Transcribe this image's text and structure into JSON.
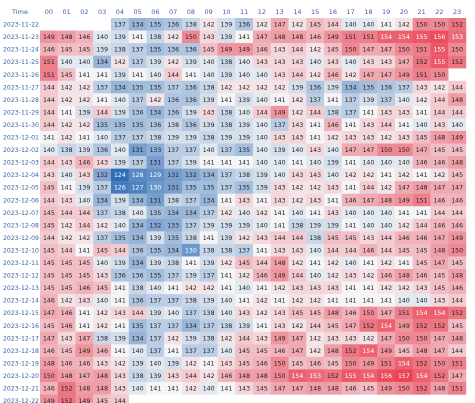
{
  "chart_data": {
    "type": "heatmap",
    "title": "",
    "corner_label": "Time",
    "color_scale": {
      "low": "#2f6db5",
      "mid": "#f5f5f7",
      "high": "#e8283c",
      "min": 124,
      "center": 141,
      "max": 160
    },
    "columns": [
      "00",
      "01",
      "02",
      "03",
      "04",
      "05",
      "06",
      "07",
      "08",
      "09",
      "10",
      "11",
      "12",
      "13",
      "14",
      "15",
      "16",
      "17",
      "18",
      "19",
      "20",
      "21",
      "22",
      "23"
    ],
    "rows": [
      "2023-11-22",
      "2023-11-23",
      "2023-11-24",
      "2023-11-25",
      "2023-11-26",
      "2023-11-27",
      "2023-11-28",
      "2023-11-29",
      "2023-11-30",
      "2023-12-01",
      "2023-12-02",
      "2023-12-03",
      "2023-12-04",
      "2023-12-05",
      "2023-12-06",
      "2023-12-07",
      "2023-12-08",
      "2023-12-09",
      "2023-12-10",
      "2023-12-11",
      "2023-12-12",
      "2023-12-13",
      "2023-12-14",
      "2023-12-15",
      "2023-12-16",
      "2023-12-17",
      "2023-12-18",
      "2023-12-19",
      "2023-12-20",
      "2023-12-21",
      "2023-12-22"
    ],
    "values": [
      [
        null,
        null,
        null,
        null,
        137,
        134,
        135,
        136,
        138,
        142,
        139,
        136,
        142,
        147,
        142,
        145,
        144,
        140,
        140,
        141,
        142,
        150,
        150,
        152
      ],
      [
        149,
        148,
        146,
        140,
        139,
        141,
        138,
        142,
        150,
        143,
        139,
        141,
        147,
        148,
        148,
        146,
        149,
        151,
        151,
        154,
        154,
        155,
        156,
        153
      ],
      [
        146,
        145,
        145,
        139,
        138,
        137,
        135,
        136,
        136,
        145,
        149,
        149,
        146,
        143,
        144,
        142,
        145,
        150,
        147,
        147,
        150,
        151,
        155,
        150
      ],
      [
        151,
        140,
        140,
        134,
        142,
        137,
        139,
        142,
        139,
        140,
        138,
        140,
        143,
        143,
        143,
        140,
        143,
        140,
        143,
        143,
        147,
        152,
        155,
        152
      ],
      [
        151,
        145,
        141,
        141,
        139,
        141,
        140,
        144,
        141,
        140,
        139,
        140,
        140,
        143,
        144,
        142,
        146,
        142,
        147,
        147,
        149,
        151,
        150,
        null
      ],
      [
        144,
        142,
        142,
        137,
        134,
        135,
        135,
        137,
        136,
        138,
        142,
        142,
        142,
        142,
        139,
        136,
        139,
        134,
        135,
        136,
        137,
        143,
        142,
        144
      ],
      [
        144,
        142,
        142,
        141,
        140,
        137,
        142,
        136,
        136,
        139,
        141,
        139,
        140,
        141,
        142,
        137,
        141,
        137,
        139,
        137,
        140,
        142,
        144,
        148
      ],
      [
        144,
        141,
        139,
        144,
        139,
        136,
        134,
        136,
        139,
        143,
        138,
        140,
        144,
        149,
        142,
        144,
        138,
        137,
        141,
        143,
        143,
        141,
        144,
        144
      ],
      [
        144,
        142,
        142,
        135,
        135,
        135,
        136,
        138,
        136,
        139,
        138,
        139,
        140,
        137,
        143,
        141,
        146,
        141,
        143,
        144,
        141,
        140,
        143,
        140
      ],
      [
        141,
        142,
        141,
        140,
        137,
        137,
        138,
        139,
        139,
        138,
        139,
        139,
        140,
        143,
        143,
        141,
        142,
        143,
        143,
        142,
        143,
        145,
        148,
        149
      ],
      [
        140,
        138,
        139,
        136,
        140,
        131,
        133,
        137,
        137,
        140,
        137,
        135,
        140,
        139,
        140,
        143,
        140,
        147,
        147,
        150,
        150,
        147,
        145,
        145
      ],
      [
        144,
        143,
        146,
        143,
        139,
        137,
        131,
        137,
        139,
        141,
        141,
        141,
        140,
        140,
        141,
        140,
        139,
        141,
        140,
        140,
        140,
        146,
        146,
        148
      ],
      [
        143,
        140,
        143,
        132,
        124,
        128,
        129,
        131,
        132,
        134,
        137,
        138,
        139,
        140,
        143,
        143,
        140,
        142,
        142,
        141,
        142,
        141,
        142,
        145
      ],
      [
        145,
        141,
        139,
        137,
        126,
        127,
        130,
        131,
        135,
        135,
        137,
        135,
        139,
        143,
        142,
        142,
        143,
        141,
        144,
        142,
        147,
        148,
        147,
        147
      ],
      [
        144,
        143,
        140,
        134,
        139,
        134,
        131,
        138,
        137,
        134,
        141,
        143,
        141,
        143,
        142,
        143,
        141,
        146,
        147,
        148,
        149,
        151,
        146,
        146
      ],
      [
        145,
        144,
        144,
        137,
        138,
        140,
        135,
        134,
        134,
        137,
        142,
        140,
        142,
        141,
        140,
        141,
        143,
        140,
        140,
        140,
        141,
        141,
        144,
        144
      ],
      [
        145,
        142,
        144,
        142,
        140,
        134,
        132,
        133,
        137,
        139,
        139,
        139,
        140,
        141,
        138,
        139,
        139,
        141,
        140,
        140,
        142,
        144,
        146,
        146
      ],
      [
        144,
        142,
        142,
        137,
        135,
        134,
        139,
        135,
        138,
        141,
        139,
        142,
        143,
        144,
        144,
        138,
        145,
        145,
        143,
        144,
        146,
        146,
        147,
        149
      ],
      [
        145,
        144,
        141,
        145,
        144,
        136,
        135,
        134,
        130,
        138,
        138,
        137,
        141,
        143,
        143,
        140,
        144,
        144,
        146,
        144,
        145,
        145,
        148,
        150
      ],
      [
        145,
        145,
        145,
        140,
        139,
        134,
        139,
        138,
        141,
        139,
        142,
        145,
        144,
        148,
        142,
        141,
        142,
        140,
        141,
        142,
        141,
        145,
        147,
        145
      ],
      [
        145,
        145,
        145,
        143,
        136,
        136,
        135,
        137,
        139,
        137,
        141,
        142,
        146,
        149,
        144,
        140,
        142,
        143,
        142,
        146,
        148,
        146,
        145,
        148
      ],
      [
        145,
        145,
        146,
        145,
        141,
        138,
        140,
        141,
        142,
        142,
        141,
        140,
        141,
        142,
        143,
        143,
        143,
        141,
        141,
        142,
        142,
        143,
        145,
        146
      ],
      [
        146,
        142,
        143,
        140,
        141,
        136,
        137,
        137,
        138,
        139,
        140,
        141,
        142,
        141,
        142,
        142,
        141,
        141,
        141,
        141,
        140,
        140,
        143,
        144
      ],
      [
        147,
        146,
        141,
        142,
        143,
        144,
        139,
        140,
        137,
        138,
        140,
        143,
        142,
        143,
        145,
        145,
        148,
        146,
        150,
        147,
        151,
        154,
        154,
        152
      ],
      [
        145,
        146,
        141,
        142,
        141,
        135,
        137,
        137,
        134,
        137,
        138,
        139,
        141,
        143,
        142,
        144,
        145,
        147,
        152,
        154,
        149,
        152,
        152,
        145
      ],
      [
        147,
        143,
        147,
        138,
        139,
        134,
        137,
        142,
        139,
        138,
        142,
        144,
        143,
        149,
        147,
        142,
        143,
        143,
        142,
        147,
        150,
        150,
        147,
        148
      ],
      [
        146,
        145,
        149,
        146,
        141,
        140,
        137,
        141,
        137,
        137,
        140,
        145,
        145,
        146,
        147,
        142,
        148,
        152,
        154,
        149,
        145,
        148,
        147,
        144
      ],
      [
        148,
        146,
        146,
        143,
        142,
        139,
        140,
        139,
        142,
        141,
        143,
        145,
        146,
        150,
        145,
        146,
        145,
        150,
        149,
        151,
        154,
        152,
        150,
        151
      ],
      [
        150,
        148,
        147,
        148,
        143,
        138,
        139,
        143,
        144,
        142,
        146,
        148,
        148,
        150,
        154,
        153,
        152,
        155,
        154,
        156,
        157,
        154,
        152,
        147
      ],
      [
        146,
        152,
        148,
        148,
        143,
        140,
        141,
        141,
        142,
        140,
        141,
        143,
        145,
        147,
        147,
        148,
        148,
        146,
        145,
        149,
        150,
        152,
        148,
        151
      ],
      [
        149,
        152,
        149,
        145,
        144,
        null,
        null,
        null,
        null,
        null,
        null,
        null,
        null,
        null,
        null,
        null,
        null,
        null,
        null,
        null,
        null,
        null,
        null,
        null
      ]
    ]
  }
}
